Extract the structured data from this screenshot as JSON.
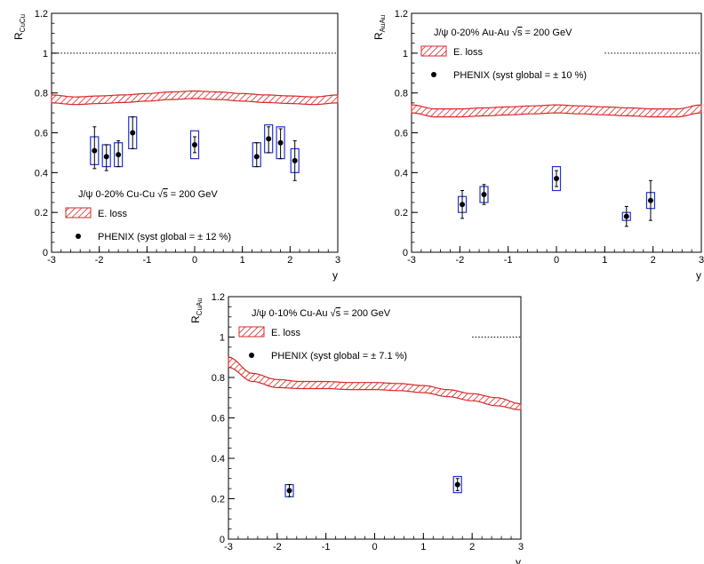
{
  "colors": {
    "band_stroke": "#d62828",
    "syst_box": "#2233cc",
    "point": "#000000",
    "axis": "#000000",
    "unity_line": "#000000"
  },
  "chart_data": [
    {
      "type": "scatter",
      "panel": "top-left",
      "ylabel_main": "R",
      "ylabel_sub": "CuCu",
      "xlabel": "y",
      "xlim": [
        -3,
        3
      ],
      "ylim": [
        0,
        1.2
      ],
      "xticks": [
        -3,
        -2,
        -1,
        0,
        1,
        2,
        3
      ],
      "yticks": [
        0,
        0.2,
        0.4,
        0.6,
        0.8,
        1,
        1.2
      ],
      "xtick_labels": [
        "-3",
        "-2",
        "-1",
        "0",
        "1",
        "2",
        "3"
      ],
      "ytick_labels": [
        "0",
        "0.2",
        "0.4",
        "0.6",
        "0.8",
        "1",
        "1.2"
      ],
      "unity_line": {
        "y": 1,
        "x_ranges": [
          [
            -3,
            3
          ]
        ],
        "style": "dotted"
      },
      "legend_placement": "bottom-left",
      "legend": {
        "title_pre": "J/ψ  0-20% Cu-Cu ",
        "sqrt_sym": "√",
        "sqrt_arg": "s",
        "title_post": " = 200 GeV",
        "band_label": "E. loss",
        "points_label": "PHENIX  (syst global = ± 12 %)"
      },
      "band": {
        "name": "E. loss",
        "x": [
          -3,
          -2.5,
          -2,
          -1.5,
          -1,
          -0.5,
          0,
          0.5,
          1,
          1.5,
          2,
          2.5,
          3
        ],
        "upper": [
          0.79,
          0.78,
          0.785,
          0.79,
          0.797,
          0.805,
          0.81,
          0.805,
          0.797,
          0.79,
          0.785,
          0.78,
          0.79
        ],
        "lower": [
          0.75,
          0.742,
          0.747,
          0.752,
          0.759,
          0.767,
          0.772,
          0.767,
          0.759,
          0.752,
          0.747,
          0.742,
          0.75
        ]
      },
      "series": [
        {
          "name": "PHENIX",
          "points": [
            {
              "x": -2.1,
              "y": 0.51,
              "stat_lo": 0.42,
              "stat_hi": 0.63,
              "box_lo": 0.44,
              "box_hi": 0.58
            },
            {
              "x": -1.85,
              "y": 0.48,
              "stat_lo": 0.41,
              "stat_hi": 0.54,
              "box_lo": 0.43,
              "box_hi": 0.54
            },
            {
              "x": -1.6,
              "y": 0.49,
              "stat_lo": 0.43,
              "stat_hi": 0.56,
              "box_lo": 0.43,
              "box_hi": 0.55
            },
            {
              "x": -1.3,
              "y": 0.6,
              "stat_lo": 0.52,
              "stat_hi": 0.68,
              "box_lo": 0.52,
              "box_hi": 0.68
            },
            {
              "x": 0.0,
              "y": 0.54,
              "stat_lo": 0.5,
              "stat_hi": 0.58,
              "box_lo": 0.47,
              "box_hi": 0.61
            },
            {
              "x": 1.3,
              "y": 0.48,
              "stat_lo": 0.43,
              "stat_hi": 0.55,
              "box_lo": 0.43,
              "box_hi": 0.55
            },
            {
              "x": 1.55,
              "y": 0.57,
              "stat_lo": 0.5,
              "stat_hi": 0.63,
              "box_lo": 0.5,
              "box_hi": 0.64
            },
            {
              "x": 1.8,
              "y": 0.55,
              "stat_lo": 0.47,
              "stat_hi": 0.62,
              "box_lo": 0.47,
              "box_hi": 0.63
            },
            {
              "x": 2.1,
              "y": 0.46,
              "stat_lo": 0.36,
              "stat_hi": 0.56,
              "box_lo": 0.4,
              "box_hi": 0.52
            }
          ]
        }
      ]
    },
    {
      "type": "scatter",
      "panel": "top-right",
      "ylabel_main": "R",
      "ylabel_sub": "AuAu",
      "xlabel": "y",
      "xlim": [
        -3,
        3
      ],
      "ylim": [
        0,
        1.2
      ],
      "xticks": [
        -3,
        -2,
        -1,
        0,
        1,
        2,
        3
      ],
      "yticks": [
        0,
        0.2,
        0.4,
        0.6,
        0.8,
        1,
        1.2
      ],
      "xtick_labels": [
        "-3",
        "-2",
        "-1",
        "0",
        "1",
        "2",
        "3"
      ],
      "ytick_labels": [
        "0",
        "0.2",
        "0.4",
        "0.6",
        "0.8",
        "1",
        "1.2"
      ],
      "unity_line": {
        "y": 1,
        "x_ranges": [
          [
            1,
            3
          ]
        ],
        "style": "dotted"
      },
      "legend_placement": "top-left",
      "legend": {
        "title_pre": "J/ψ  0-20% Au-Au ",
        "sqrt_sym": "√",
        "sqrt_arg": "s",
        "title_post": " = 200 GeV",
        "band_label": "E. loss",
        "points_label": "PHENIX (syst global = ± 10 %)"
      },
      "band": {
        "name": "E. loss",
        "x": [
          -3,
          -2.5,
          -2,
          -1.5,
          -1,
          -0.5,
          0,
          0.5,
          1,
          1.5,
          2,
          2.5,
          3
        ],
        "upper": [
          0.74,
          0.72,
          0.72,
          0.725,
          0.73,
          0.735,
          0.74,
          0.735,
          0.73,
          0.725,
          0.72,
          0.72,
          0.74
        ],
        "lower": [
          0.7,
          0.68,
          0.68,
          0.685,
          0.69,
          0.695,
          0.7,
          0.695,
          0.69,
          0.685,
          0.68,
          0.68,
          0.7
        ]
      },
      "series": [
        {
          "name": "PHENIX",
          "points": [
            {
              "x": -1.95,
              "y": 0.24,
              "stat_lo": 0.17,
              "stat_hi": 0.31,
              "box_lo": 0.2,
              "box_hi": 0.28
            },
            {
              "x": -1.5,
              "y": 0.29,
              "stat_lo": 0.24,
              "stat_hi": 0.34,
              "box_lo": 0.25,
              "box_hi": 0.33
            },
            {
              "x": 0.0,
              "y": 0.37,
              "stat_lo": 0.33,
              "stat_hi": 0.41,
              "box_lo": 0.31,
              "box_hi": 0.43
            },
            {
              "x": 1.45,
              "y": 0.18,
              "stat_lo": 0.13,
              "stat_hi": 0.23,
              "box_lo": 0.16,
              "box_hi": 0.2
            },
            {
              "x": 1.95,
              "y": 0.26,
              "stat_lo": 0.16,
              "stat_hi": 0.36,
              "box_lo": 0.22,
              "box_hi": 0.3
            }
          ]
        }
      ]
    },
    {
      "type": "scatter",
      "panel": "bottom-center",
      "ylabel_main": "R",
      "ylabel_sub": "CuAu",
      "xlabel": "y",
      "xlim": [
        -3,
        3
      ],
      "ylim": [
        0,
        1.2
      ],
      "xticks": [
        -3,
        -2,
        -1,
        0,
        1,
        2,
        3
      ],
      "yticks": [
        0,
        0.2,
        0.4,
        0.6,
        0.8,
        1,
        1.2
      ],
      "xtick_labels": [
        "-3",
        "-2",
        "-1",
        "0",
        "1",
        "2",
        "3"
      ],
      "ytick_labels": [
        "0",
        "0.2",
        "0.4",
        "0.6",
        "0.8",
        "1",
        "1.2"
      ],
      "unity_line": {
        "y": 1,
        "x_ranges": [
          [
            2.0,
            3
          ]
        ],
        "style": "dotted"
      },
      "legend_placement": "top-left",
      "legend": {
        "title_pre": "J/ψ  0-10% Cu-Au ",
        "sqrt_sym": "√",
        "sqrt_arg": "s",
        "title_post": " = 200 GeV",
        "band_label": "E. loss",
        "points_label": "PHENIX (syst global = ± 7.1 %)"
      },
      "band": {
        "name": "E. loss",
        "x": [
          -3,
          -2.5,
          -2,
          -1.5,
          -1,
          -0.5,
          0,
          0.5,
          1,
          1.5,
          2,
          2.5,
          3
        ],
        "upper": [
          0.9,
          0.82,
          0.79,
          0.78,
          0.78,
          0.775,
          0.775,
          0.77,
          0.76,
          0.74,
          0.72,
          0.7,
          0.67
        ],
        "lower": [
          0.85,
          0.78,
          0.75,
          0.745,
          0.745,
          0.74,
          0.74,
          0.735,
          0.725,
          0.705,
          0.685,
          0.66,
          0.64
        ]
      },
      "series": [
        {
          "name": "PHENIX",
          "points": [
            {
              "x": -1.75,
              "y": 0.24,
              "stat_lo": 0.21,
              "stat_hi": 0.27,
              "box_lo": 0.21,
              "box_hi": 0.27
            },
            {
              "x": 1.7,
              "y": 0.27,
              "stat_lo": 0.24,
              "stat_hi": 0.3,
              "box_lo": 0.23,
              "box_hi": 0.31
            }
          ]
        }
      ]
    }
  ]
}
